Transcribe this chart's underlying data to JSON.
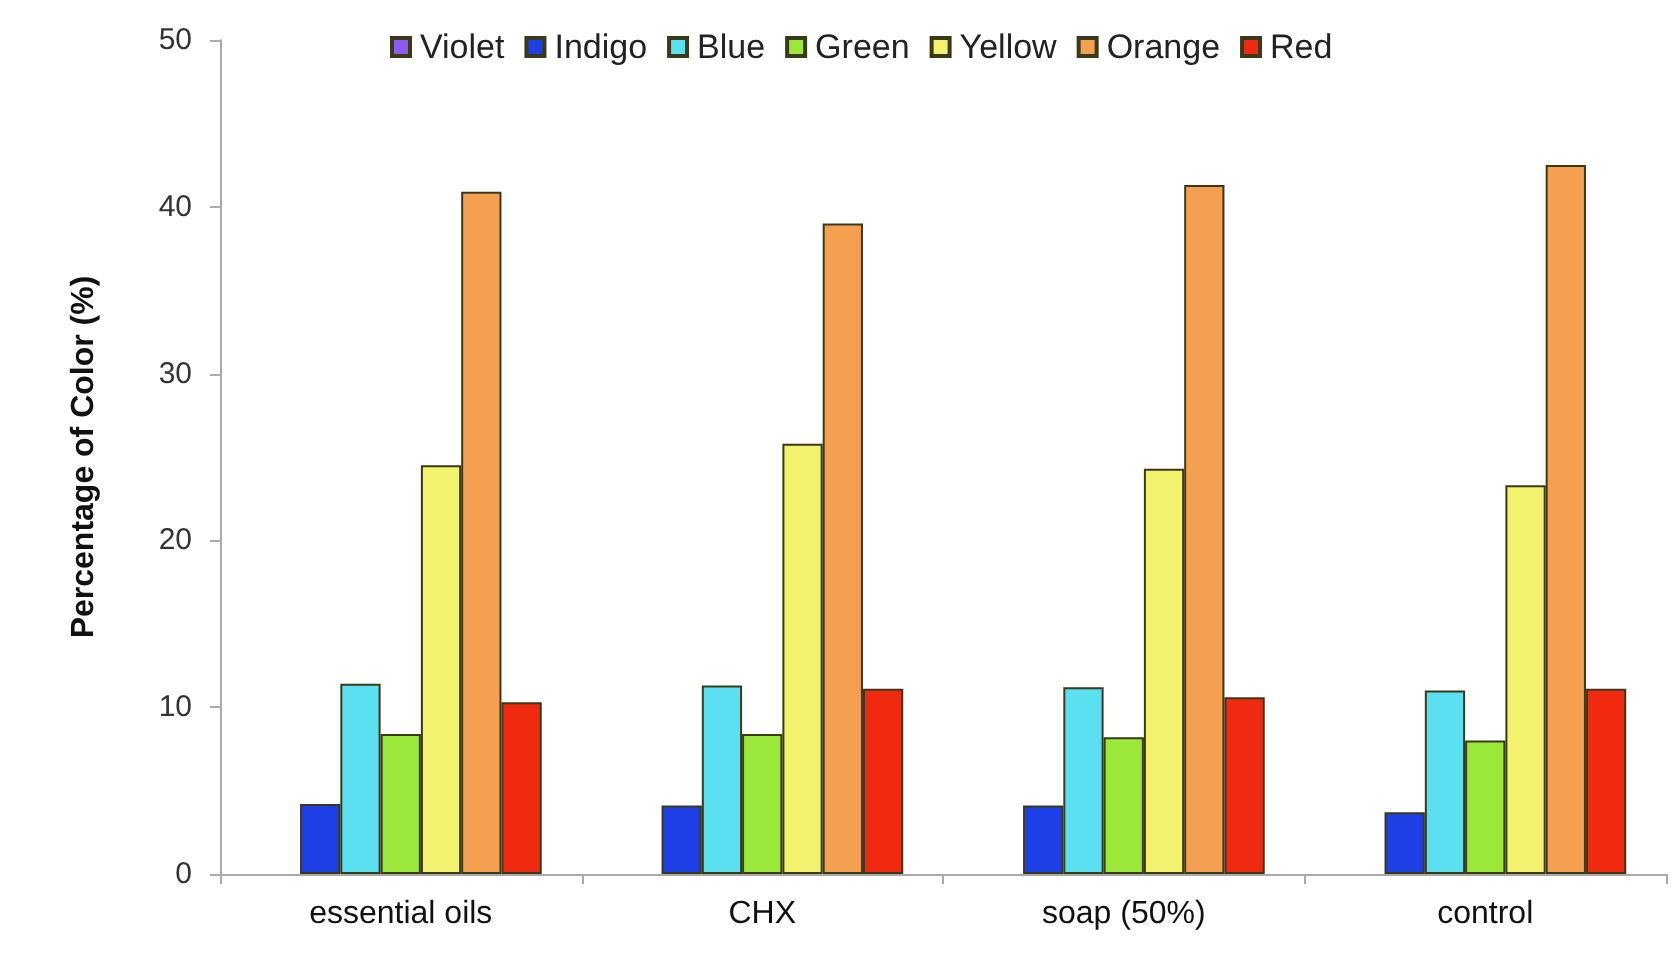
{
  "chart_data": {
    "type": "bar",
    "ylabel": "Percentage of Color (%)",
    "categories": [
      "essential oils",
      "CHX",
      "soap (50%)",
      "control"
    ],
    "series": [
      {
        "name": "Violet",
        "color": "#8a5cf0",
        "values": [
          0,
          0,
          0,
          0
        ]
      },
      {
        "name": "Indigo",
        "color": "#1f3fe6",
        "values": [
          4.2,
          4.1,
          4.1,
          3.7
        ]
      },
      {
        "name": "Blue",
        "color": "#5ae0f0",
        "values": [
          11.4,
          11.3,
          11.2,
          11.0
        ]
      },
      {
        "name": "Green",
        "color": "#9ae83a",
        "values": [
          8.4,
          8.4,
          8.2,
          8.0
        ]
      },
      {
        "name": "Yellow",
        "color": "#f2f26e",
        "values": [
          24.5,
          25.8,
          24.3,
          23.3
        ]
      },
      {
        "name": "Orange",
        "color": "#f5a050",
        "values": [
          40.9,
          39.0,
          41.3,
          42.5
        ]
      },
      {
        "name": "Red",
        "color": "#f02a10",
        "values": [
          10.3,
          11.1,
          10.6,
          11.1
        ]
      }
    ],
    "ylim": [
      0,
      50
    ],
    "yticks": [
      0,
      10,
      20,
      30,
      40,
      50
    ],
    "grid": false,
    "legend": "top"
  }
}
